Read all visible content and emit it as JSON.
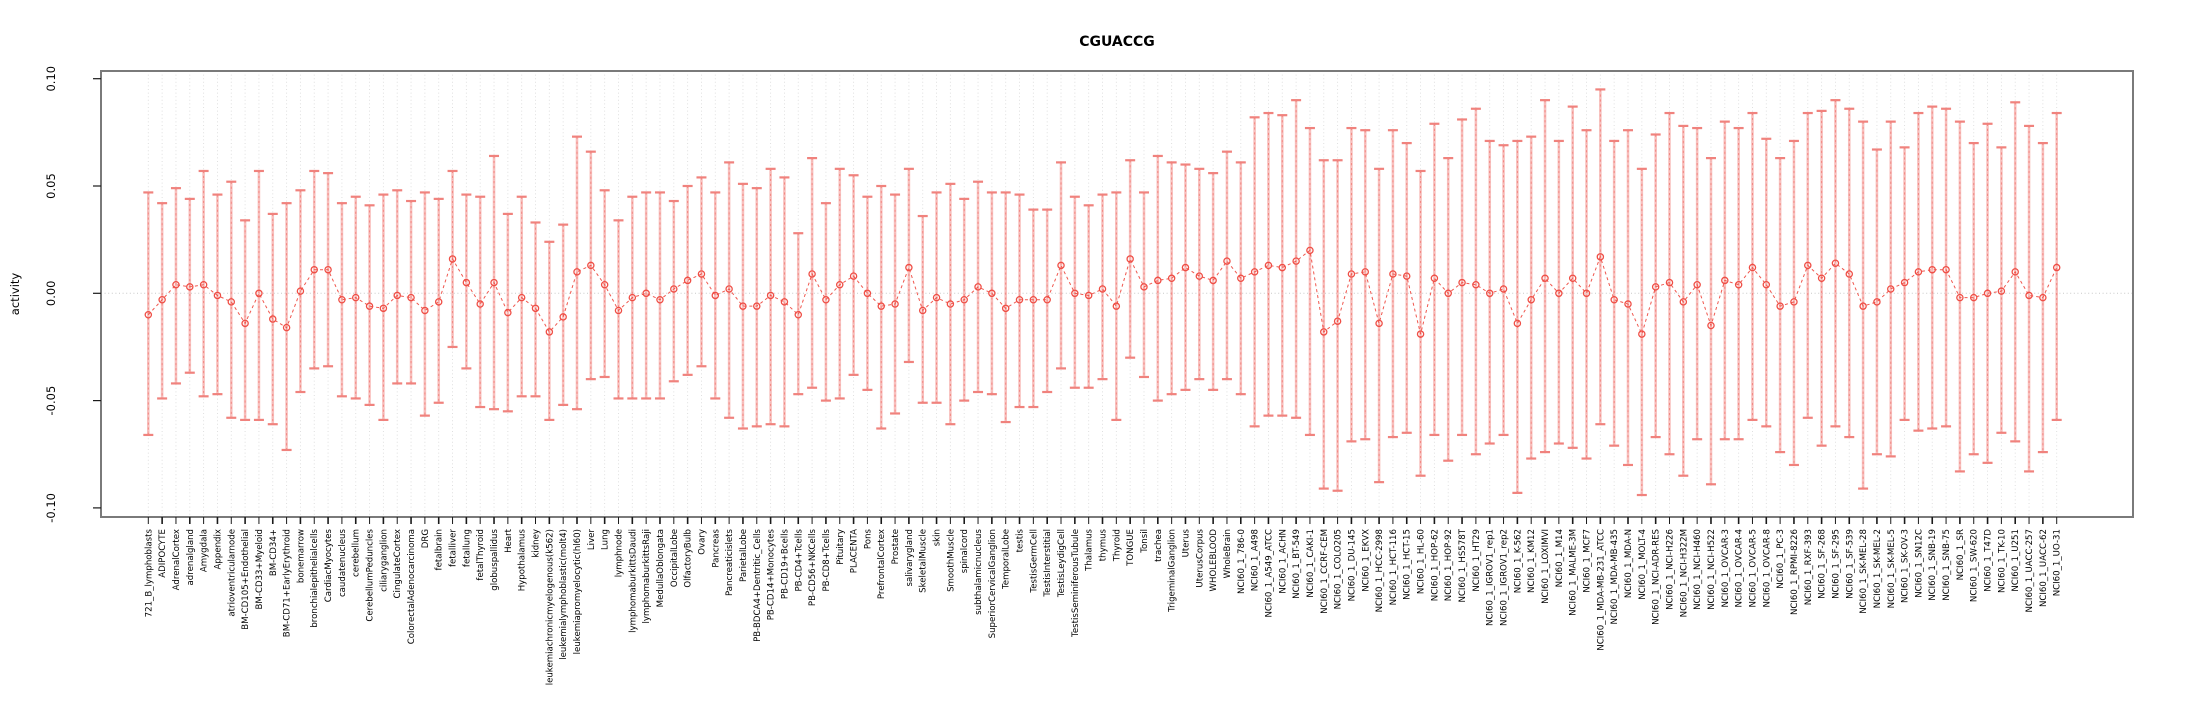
{
  "chart_data": {
    "type": "errorbar-line",
    "title": "CGUACCG",
    "xlabel": "",
    "ylabel": "activity",
    "ylim": [
      -0.104,
      0.104
    ],
    "yticks": [
      0.1,
      0.05,
      0.0,
      -0.05,
      -0.1
    ],
    "ytick_labels": [
      "0.10",
      "0.05",
      "0.00",
      "-0.05",
      "-0.10"
    ],
    "grid": "vertical dotted per category, dotted zero line",
    "legend": "none",
    "colors": {
      "point_stroke": "#ef4e45",
      "connect_dash": "#ef4e45",
      "bar_thick": "#f59b97",
      "bar_cap": "#f0827d",
      "grid_line": "#dcdcdc",
      "zero_line": "#c9c9c9",
      "box": "#7a7a7a",
      "tick": "#1a1a1a",
      "text": "#000000",
      "background": "#ffffff"
    },
    "categories": [
      "721_B_lymphoblasts",
      "ADIPOCYTE",
      "AdrenalCortex",
      "adrenalgland",
      "Amygdala",
      "Appendix",
      "atrioventricularnode",
      "BM-CD105+Endothelial",
      "BM-CD33+Myeloid",
      "BM-CD34+",
      "BM-CD71+EarlyErythroid",
      "bonemarrow",
      "bronchialepithelialcells",
      "CardiacMyocytes",
      "caudatenucleus",
      "cerebellum",
      "CerebellumPeduncles",
      "ciliaryganglion",
      "CingulateCortex",
      "ColorectalAdenocarcinoma",
      "DRG",
      "fetalbrain",
      "fetalliver",
      "fetallung",
      "fetalThyroid",
      "globuspallidus",
      "Heart",
      "Hypothalamus",
      "kidney",
      "leukemiachronicmyelogenous(k562)",
      "leukemialymphoblastic(molt4)",
      "leukemiapromyelocytic(hl60)",
      "Liver",
      "Lung",
      "lymphnode",
      "lymphomaburkittsDaudi",
      "lymphomaburkittsRaji",
      "MedullaOblongata",
      "OccipitalLobe",
      "OlfactoryBulb",
      "Ovary",
      "Pancreas",
      "Pancreaticislets",
      "ParietalLobe",
      "PB-BDCA4+Dentritic_Cells",
      "PB-CD14+Monocytes",
      "PB-CD19+Bcells",
      "PB-CD4+Tcells",
      "PB-CD56+NKCells",
      "PB-CD8+Tcells",
      "Pituitary",
      "PLACENTA",
      "Pons",
      "PrefrontalCortex",
      "Prostate",
      "salivarygland",
      "SkeletalMuscle",
      "skin",
      "SmoothMuscle",
      "spinalcord",
      "subthalamicnucleus",
      "SuperiorCervicalGanglion",
      "TemporalLobe",
      "testis",
      "TestisGermCell",
      "TestisInterstitial",
      "TestisLeydigCell",
      "TestisSeminiferousTubule",
      "Thalamus",
      "thymus",
      "Thyroid",
      "TONGUE",
      "Tonsil",
      "trachea",
      "TrigeminalGanglion",
      "Uterus",
      "UterusCorpus",
      "WHOLEBLOOD",
      "WholeBrain",
      "NCI60_1_786-0",
      "NCI60_1_A498",
      "NCI60_1_A549_ATCC",
      "NCI60_1_ACHN",
      "NCI60_1_BT-549",
      "NCI60_1_CAKI-1",
      "NCI60_1_CCRF-CEM",
      "NCI60_1_COLO205",
      "NCI60_1_DU-145",
      "NCI60_1_EKVX",
      "NCI60_1_HCC-2998",
      "NCI60_1_HCT-116",
      "NCI60_1_HCT-15",
      "NCI60_1_HL-60",
      "NCI60_1_HOP-62",
      "NCI60_1_HOP-92",
      "NCI60_1_HS578T",
      "NCI60_1_HT29",
      "NCI60_1_IGROV1_rep1",
      "NCI60_1_IGROV1_rep2",
      "NCI60_1_K-562",
      "NCI60_1_KM12",
      "NCI60_1_LOXIMVI",
      "NCI60_1_M14",
      "NCI60_1_MALME-3M",
      "NCI60_1_MCF7",
      "NCI60_1_MDA-MB-231_ATCC",
      "NCI60_1_MDA-MB-435",
      "NCI60_1_MDA-N",
      "NCI60_1_MOLT-4",
      "NCI60_1_NCI-ADR-RES",
      "NCI60_1_NCI-H226",
      "NCI60_1_NCI-H322M",
      "NCI60_1_NCI-H460",
      "NCI60_1_NCI-H522",
      "NCI60_1_OVCAR-3",
      "NCI60_1_OVCAR-4",
      "NCI60_1_OVCAR-5",
      "NCI60_1_OVCAR-8",
      "NCI60_1_PC-3",
      "NCI60_1_RPMI-8226",
      "NCI60_1_RXF-393",
      "NCI60_1_SF-268",
      "NCI60_1_SF-295",
      "NCI60_1_SF-539",
      "NCI60_1_SK-MEL-28",
      "NCI60_1_SK-MEL-2",
      "NCI60_1_SK-MEL-5",
      "NCI60_1_SK-OV-3",
      "NCI60_1_SN12C",
      "NCI60_1_SNB-19",
      "NCI60_1_SNB-75",
      "NCI60_1_SR",
      "NCI60_1_SW-620",
      "NCI60_1_T47D",
      "NCI60_1_TK-10",
      "NCI60_1_U251",
      "NCI60_1_UACC-257",
      "NCI60_1_UACC-62",
      "NCI60_1_UO-31"
    ],
    "series": [
      {
        "name": "activity",
        "values": [
          -0.01,
          -0.003,
          0.004,
          0.003,
          0.004,
          -0.001,
          -0.004,
          -0.014,
          0.0,
          -0.012,
          -0.016,
          0.001,
          0.011,
          0.011,
          -0.003,
          -0.002,
          -0.006,
          -0.007,
          -0.001,
          -0.002,
          -0.008,
          -0.004,
          0.016,
          0.005,
          -0.005,
          0.005,
          -0.009,
          -0.002,
          -0.007,
          -0.018,
          -0.011,
          0.01,
          0.013,
          0.004,
          -0.008,
          -0.002,
          0.0,
          -0.003,
          0.002,
          0.006,
          0.009,
          -0.001,
          0.002,
          -0.006,
          -0.006,
          -0.001,
          -0.004,
          -0.01,
          0.009,
          -0.003,
          0.004,
          0.008,
          0.0,
          -0.006,
          -0.005,
          0.012,
          -0.008,
          -0.002,
          -0.005,
          -0.003,
          0.003,
          0.0,
          -0.007,
          -0.003,
          -0.003,
          -0.003,
          0.013,
          0.0,
          -0.001,
          0.002,
          -0.006,
          0.016,
          0.003,
          0.006,
          0.007,
          0.012,
          0.008,
          0.006,
          0.015,
          0.007,
          0.01,
          0.013,
          0.012,
          0.015,
          0.02,
          -0.018,
          -0.013,
          0.009,
          0.01,
          -0.014,
          0.009,
          0.008,
          -0.019,
          0.007,
          0.0,
          0.005,
          0.004,
          0.0,
          0.002,
          -0.014,
          -0.003,
          0.007,
          0.0,
          0.007,
          0.0,
          0.017,
          -0.003,
          -0.005,
          -0.019,
          0.003,
          0.005,
          -0.004,
          0.004,
          -0.015,
          0.006,
          0.004,
          0.012,
          0.004,
          -0.006,
          -0.004,
          0.013,
          0.007,
          0.014,
          0.009,
          -0.006,
          -0.004,
          0.002,
          0.005,
          0.01,
          0.011,
          0.011,
          -0.002,
          -0.002,
          0.0,
          0.001,
          0.01,
          -0.001,
          -0.002,
          0.012
        ],
        "upper": [
          0.047,
          0.042,
          0.049,
          0.044,
          0.057,
          0.046,
          0.052,
          0.034,
          0.057,
          0.037,
          0.042,
          0.048,
          0.057,
          0.056,
          0.042,
          0.045,
          0.041,
          0.046,
          0.048,
          0.043,
          0.047,
          0.044,
          0.057,
          0.046,
          0.045,
          0.064,
          0.037,
          0.045,
          0.033,
          0.024,
          0.032,
          0.073,
          0.066,
          0.048,
          0.034,
          0.045,
          0.047,
          0.047,
          0.043,
          0.05,
          0.054,
          0.047,
          0.061,
          0.051,
          0.049,
          0.058,
          0.054,
          0.028,
          0.063,
          0.042,
          0.058,
          0.055,
          0.045,
          0.05,
          0.046,
          0.058,
          0.036,
          0.047,
          0.051,
          0.044,
          0.052,
          0.047,
          0.047,
          0.046,
          0.039,
          0.039,
          0.061,
          0.045,
          0.041,
          0.046,
          0.047,
          0.062,
          0.047,
          0.064,
          0.061,
          0.06,
          0.058,
          0.056,
          0.066,
          0.061,
          0.082,
          0.084,
          0.083,
          0.09,
          0.077,
          0.062,
          0.062,
          0.077,
          0.076,
          0.058,
          0.076,
          0.07,
          0.057,
          0.079,
          0.063,
          0.081,
          0.086,
          0.071,
          0.069,
          0.071,
          0.073,
          0.09,
          0.071,
          0.087,
          0.076,
          0.095,
          0.071,
          0.076,
          0.058,
          0.074,
          0.084,
          0.078,
          0.077,
          0.063,
          0.08,
          0.077,
          0.084,
          0.072,
          0.063,
          0.071,
          0.084,
          0.085,
          0.09,
          0.086,
          0.08,
          0.067,
          0.08,
          0.068,
          0.084,
          0.087,
          0.086,
          0.08,
          0.07,
          0.079,
          0.068,
          0.089,
          0.078,
          0.07,
          0.084
        ],
        "lower": [
          -0.066,
          -0.049,
          -0.042,
          -0.037,
          -0.048,
          -0.047,
          -0.058,
          -0.059,
          -0.059,
          -0.061,
          -0.073,
          -0.046,
          -0.035,
          -0.034,
          -0.048,
          -0.049,
          -0.052,
          -0.059,
          -0.042,
          -0.042,
          -0.057,
          -0.051,
          -0.025,
          -0.035,
          -0.053,
          -0.054,
          -0.055,
          -0.048,
          -0.048,
          -0.059,
          -0.052,
          -0.054,
          -0.04,
          -0.039,
          -0.049,
          -0.049,
          -0.049,
          -0.049,
          -0.041,
          -0.038,
          -0.034,
          -0.049,
          -0.058,
          -0.063,
          -0.062,
          -0.061,
          -0.062,
          -0.047,
          -0.044,
          -0.05,
          -0.049,
          -0.038,
          -0.045,
          -0.063,
          -0.056,
          -0.032,
          -0.051,
          -0.051,
          -0.061,
          -0.05,
          -0.046,
          -0.047,
          -0.06,
          -0.053,
          -0.053,
          -0.046,
          -0.035,
          -0.044,
          -0.044,
          -0.04,
          -0.059,
          -0.03,
          -0.039,
          -0.05,
          -0.047,
          -0.045,
          -0.04,
          -0.045,
          -0.04,
          -0.047,
          -0.062,
          -0.057,
          -0.057,
          -0.058,
          -0.066,
          -0.091,
          -0.092,
          -0.069,
          -0.068,
          -0.088,
          -0.067,
          -0.065,
          -0.085,
          -0.066,
          -0.078,
          -0.066,
          -0.075,
          -0.07,
          -0.066,
          -0.093,
          -0.077,
          -0.074,
          -0.07,
          -0.072,
          -0.077,
          -0.061,
          -0.071,
          -0.08,
          -0.094,
          -0.067,
          -0.075,
          -0.085,
          -0.068,
          -0.089,
          -0.068,
          -0.068,
          -0.059,
          -0.062,
          -0.074,
          -0.08,
          -0.058,
          -0.071,
          -0.062,
          -0.067,
          -0.091,
          -0.075,
          -0.076,
          -0.059,
          -0.064,
          -0.063,
          -0.062,
          -0.083,
          -0.075,
          -0.079,
          -0.065,
          -0.069,
          -0.083,
          -0.074,
          -0.059
        ]
      }
    ]
  }
}
